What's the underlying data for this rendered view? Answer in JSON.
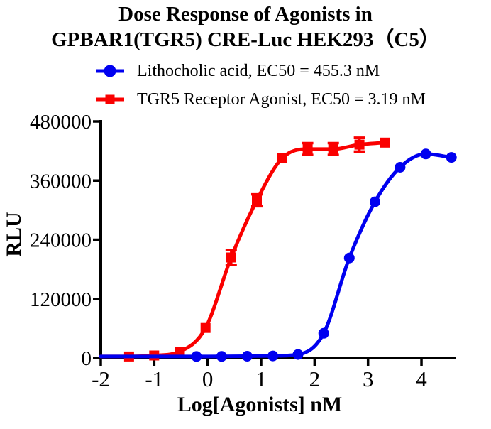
{
  "chart_data": {
    "type": "scatter",
    "title": [
      "Dose Response of Agonists in",
      "GPBAR1(TGR5) CRE-Luc HEK293（C5）"
    ],
    "xlabel": "Log[Agonists] nM",
    "ylabel": "RLU",
    "xlim": [
      -2,
      4.65
    ],
    "ylim": [
      0,
      480000
    ],
    "x_ticks": [
      -2,
      -1,
      0,
      1,
      2,
      3,
      4
    ],
    "y_ticks": [
      0,
      120000,
      240000,
      360000,
      480000
    ],
    "grid": false,
    "legend_position": "top-center",
    "series": [
      {
        "name": "Lithocholic acid, EC50 = 455.3 nM",
        "ec50_nM": 455.3,
        "color": "#0000F0",
        "marker": "circle",
        "x": [
          -0.21,
          0.26,
          0.74,
          1.22,
          1.69,
          2.17,
          2.65,
          3.13,
          3.6,
          4.08,
          4.56
        ],
        "y": [
          3000,
          3200,
          3600,
          4200,
          7000,
          50000,
          203000,
          317000,
          387000,
          414000,
          407000
        ],
        "err": [
          0,
          0,
          0,
          0,
          0,
          0,
          0,
          0,
          0,
          0,
          0
        ]
      },
      {
        "name": "TGR5 Receptor Agonist, EC50 = 3.19 nM",
        "ec50_nM": 3.19,
        "color": "#FA0000",
        "marker": "square",
        "x": [
          -1.47,
          -1.0,
          -0.52,
          -0.04,
          0.44,
          0.92,
          1.39,
          1.87,
          2.35,
          2.84,
          3.31
        ],
        "y": [
          3000,
          5000,
          13000,
          61000,
          204000,
          320000,
          405000,
          424000,
          424000,
          433000,
          437000
        ],
        "err": [
          0,
          0,
          0,
          0,
          15000,
          12000,
          0,
          12000,
          12000,
          14000,
          0
        ]
      }
    ]
  }
}
